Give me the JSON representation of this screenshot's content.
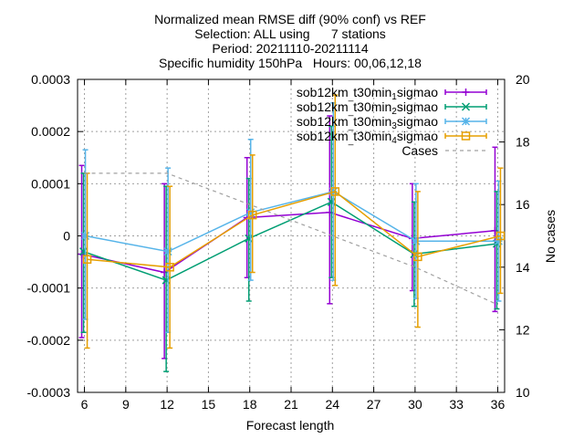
{
  "chart_data": {
    "type": "line",
    "title_lines": [
      "Normalized mean RMSE diff (90% conf) vs REF",
      "Selection: ALL using      7 stations",
      "Period: 20211110-20211114",
      "Specific humidity 150hPa   Hours: 00,06,12,18"
    ],
    "xlabel": "Forecast length",
    "ylabel": "",
    "y2label": "No cases",
    "x": [
      6,
      12,
      18,
      24,
      30,
      36
    ],
    "xticks": [
      "6",
      "9",
      "12",
      "15",
      "18",
      "21",
      "24",
      "27",
      "30",
      "33",
      "36"
    ],
    "xtick_values": [
      6,
      9,
      12,
      15,
      18,
      21,
      24,
      27,
      30,
      33,
      36
    ],
    "xlim": [
      5.5,
      36.5
    ],
    "ylim": [
      -0.0003,
      0.0003
    ],
    "yticks": [
      "-0.0003",
      "-0.0002",
      "-0.0001",
      "0",
      "0.0001",
      "0.0002",
      "0.0003"
    ],
    "ytick_values": [
      -0.0003,
      -0.0002,
      -0.0001,
      0,
      0.0001,
      0.0002,
      0.0003
    ],
    "y2lim": [
      10,
      20
    ],
    "y2ticks": [
      "10",
      "12",
      "14",
      "16",
      "18",
      "20"
    ],
    "y2tick_values": [
      10,
      12,
      14,
      16,
      18,
      20
    ],
    "legend_position": "top-right",
    "series": [
      {
        "name": "sob12km_t30min_1sigmao",
        "legend_parts": [
          "sob12km",
          "t30min",
          "1",
          "sigmao"
        ],
        "color": "#9400d3",
        "marker": "plus",
        "values": [
          -3.5e-05,
          -7e-05,
          3.5e-05,
          4.5e-05,
          -5e-06,
          1e-05
        ],
        "err_low": [
          -0.000195,
          -0.000235,
          -8e-05,
          -0.00013,
          -0.000105,
          -0.000145
        ],
        "err_high": [
          0.000135,
          0.0001,
          0.00015,
          0.00023,
          0.0001,
          0.00017
        ]
      },
      {
        "name": "sob12km_t30min_2sigmao",
        "legend_parts": [
          "sob12km",
          "t30min",
          "2",
          "sigmao"
        ],
        "color": "#009e73",
        "marker": "cross",
        "values": [
          -3e-05,
          -8.5e-05,
          -5e-06,
          6.5e-05,
          -3.5e-05,
          -1.5e-05
        ],
        "err_low": [
          -0.000185,
          -0.00026,
          -0.000125,
          -8e-05,
          -0.000135,
          -0.00014
        ],
        "err_high": [
          0.00012,
          9.5e-05,
          0.00011,
          0.00021,
          6.5e-05,
          8.5e-05
        ]
      },
      {
        "name": "sob12km_t30min_3sigmao",
        "legend_parts": [
          "sob12km",
          "t30min",
          "3",
          "sigmao"
        ],
        "color": "#56b4e9",
        "marker": "star",
        "values": [
          0.0,
          -3e-05,
          4.5e-05,
          8.5e-05,
          -1e-05,
          -1e-05
        ],
        "err_low": [
          -0.00016,
          -0.000185,
          -8.5e-05,
          -8.5e-05,
          -0.00012,
          -0.000125
        ],
        "err_high": [
          0.000165,
          0.00013,
          0.000185,
          0.000255,
          0.0001,
          0.000105
        ]
      },
      {
        "name": "sob12km_t30min_4sigmao",
        "legend_parts": [
          "sob12km",
          "t30min",
          "4",
          "sigmao"
        ],
        "color": "#e69f00",
        "marker": "square",
        "values": [
          -4.5e-05,
          -6e-05,
          4e-05,
          8.5e-05,
          -4e-05,
          0.0
        ],
        "err_low": [
          -0.000215,
          -0.000215,
          -7e-05,
          -9.5e-05,
          -0.000175,
          -0.00011
        ],
        "err_high": [
          0.00012,
          9.5e-05,
          0.000155,
          0.00027,
          8.5e-05,
          0.00013
        ]
      },
      {
        "name": "Cases",
        "color": "#a0a0a0",
        "axis": "y2",
        "style": "dashed",
        "x": [
          6,
          12,
          24,
          30,
          36
        ],
        "values": [
          17,
          17,
          15,
          14,
          12.8
        ]
      }
    ]
  }
}
